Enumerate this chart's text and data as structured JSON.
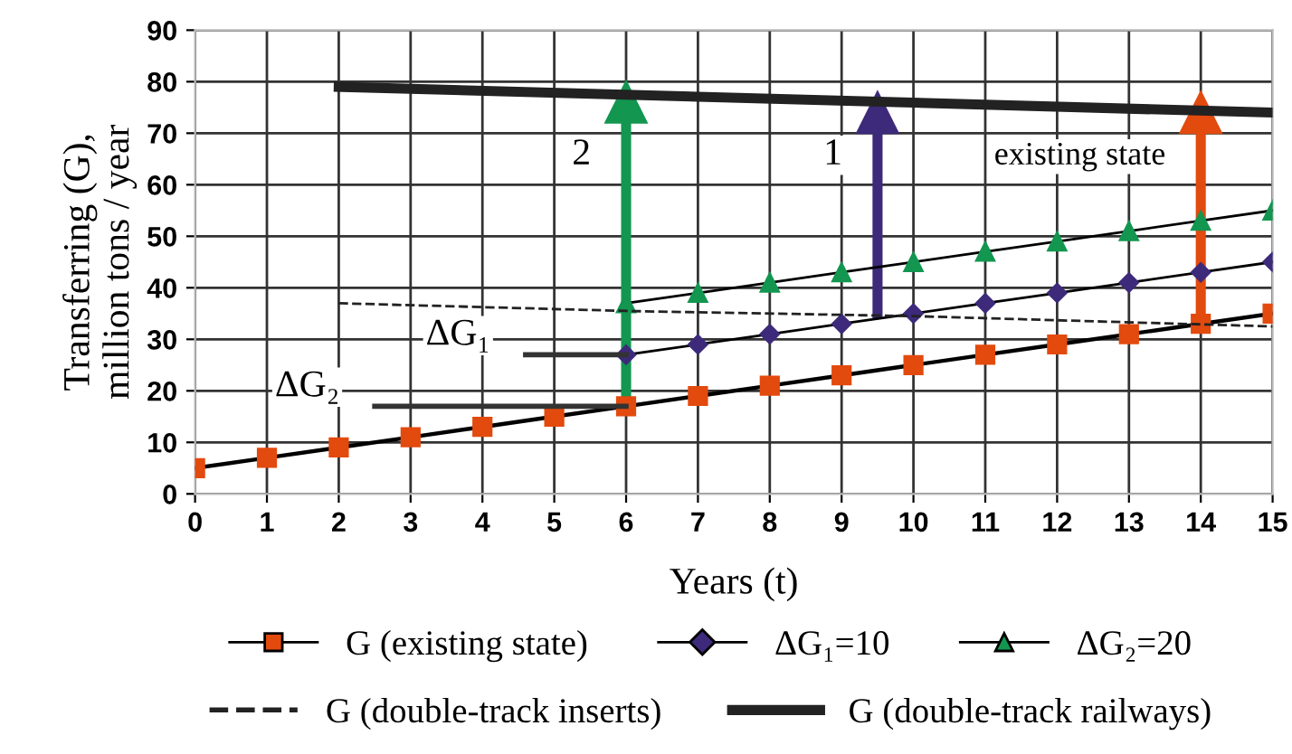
{
  "chart_data": {
    "type": "line",
    "xlabel": "Years (t)",
    "ylabel": "Transferring (G),\nmillion tons / year",
    "xlim": [
      0,
      15
    ],
    "ylim": [
      0,
      90
    ],
    "xticks": [
      0,
      1,
      2,
      3,
      4,
      5,
      6,
      7,
      8,
      9,
      10,
      11,
      12,
      13,
      14,
      15
    ],
    "yticks": [
      0,
      10,
      20,
      30,
      40,
      50,
      60,
      70,
      80,
      90
    ],
    "grid": true,
    "legend": "bottom",
    "series": [
      {
        "name": "G (existing state)",
        "color": "#e34a0e",
        "marker": "square",
        "x": [
          0,
          1,
          2,
          3,
          4,
          5,
          6,
          7,
          8,
          9,
          10,
          11,
          12,
          13,
          14,
          15
        ],
        "values": [
          5,
          7,
          9,
          11,
          13,
          15,
          17,
          19,
          21,
          23,
          25,
          27,
          29,
          31,
          33,
          35
        ]
      },
      {
        "name": "ΔG₁=10",
        "color": "#3d2a7a",
        "marker": "diamond",
        "x": [
          6,
          7,
          8,
          9,
          10,
          11,
          12,
          13,
          14,
          15
        ],
        "values": [
          27,
          29,
          31,
          33,
          35,
          37,
          39,
          41,
          43,
          45
        ]
      },
      {
        "name": "ΔG₂=20",
        "color": "#139650",
        "marker": "triangle",
        "x": [
          6,
          7,
          8,
          9,
          10,
          11,
          12,
          13,
          14,
          15
        ],
        "values": [
          37,
          39,
          41,
          43,
          45,
          47,
          49,
          51,
          53,
          55
        ]
      },
      {
        "name": "G (double-track inserts)",
        "color": "#222222",
        "line_style": "dashed",
        "x": [
          2,
          6,
          10,
          15
        ],
        "values": [
          37,
          35.5,
          34.5,
          32.5
        ]
      },
      {
        "name": "G (double-track railways)",
        "color": "#222222",
        "x": [
          2,
          15
        ],
        "values": [
          79,
          74
        ]
      },
      {
        "color": "#139650",
        "marker": "triangle",
        "x": [
          6,
          6
        ],
        "values": [
          17,
          76
        ]
      },
      {
        "color": "#3d2a7a",
        "marker": "triangle",
        "x": [
          9.5,
          9.5
        ],
        "values": [
          34,
          74
        ]
      },
      {
        "color": "#e34a0e",
        "marker": "triangle",
        "x": [
          14,
          14
        ],
        "values": [
          33,
          74
        ]
      },
      {
        "color": "#333333",
        "x": [
          2.5,
          6
        ],
        "values": [
          17,
          17
        ]
      },
      {
        "color": "#333333",
        "x": [
          4.6,
          6
        ],
        "values": [
          27,
          27
        ]
      }
    ],
    "annotations": [
      {
        "text": "2",
        "x": 6,
        "y": 62
      },
      {
        "text": "1",
        "x": 9.5,
        "y": 62
      },
      {
        "text": "existing state",
        "x": 14,
        "y": 62
      },
      {
        "text": "ΔG₂",
        "x": 2.5,
        "y": 17
      },
      {
        "text": "ΔG₁",
        "x": 4.6,
        "y": 27
      }
    ]
  }
}
